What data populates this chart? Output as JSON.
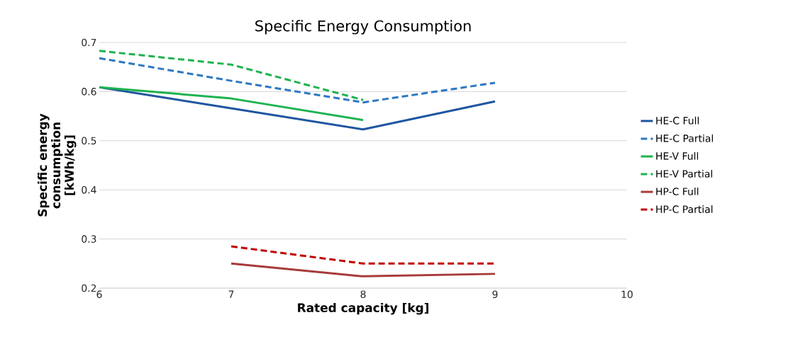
{
  "chart_data": {
    "type": "line",
    "title": "Specific Energy Consumption",
    "xlabel": "Rated capacity [kg]",
    "ylabel": "Specific energy consumption [kWh/kg]",
    "xlim": [
      6,
      10
    ],
    "xticks": [
      6,
      7,
      8,
      9,
      10
    ],
    "ylim": [
      0.2,
      0.7
    ],
    "yticks": [
      0.2,
      0.3,
      0.4,
      0.5,
      0.6,
      0.7
    ],
    "grid": "y",
    "legend": "right",
    "series": [
      {
        "name": "HE-C Full",
        "color": "#1f56a0",
        "line_style": "solid",
        "x": [
          6,
          7,
          8,
          9
        ],
        "values": [
          0.609,
          0.566,
          0.523,
          0.58
        ]
      },
      {
        "name": "HE-C Partial",
        "color": "#2e78c2",
        "line_style": "dashed",
        "x": [
          6,
          7,
          8,
          9
        ],
        "values": [
          0.668,
          0.622,
          0.578,
          0.618
        ]
      },
      {
        "name": "HE-V Full",
        "color": "#1db34f",
        "line_style": "solid",
        "x": [
          6,
          7,
          8
        ],
        "values": [
          0.609,
          0.586,
          0.542
        ]
      },
      {
        "name": "HE-V Partial",
        "color": "#1db34f",
        "line_style": "dashed",
        "x": [
          6,
          7,
          8
        ],
        "values": [
          0.683,
          0.655,
          0.583
        ]
      },
      {
        "name": "HP-C Full",
        "color": "#a83a3a",
        "line_style": "solid",
        "x": [
          7,
          8,
          9
        ],
        "values": [
          0.25,
          0.224,
          0.229
        ]
      },
      {
        "name": "HP-C Partial",
        "color": "#c00000",
        "line_style": "dashed",
        "x": [
          7,
          8,
          9
        ],
        "values": [
          0.285,
          0.25,
          0.25
        ]
      }
    ]
  }
}
